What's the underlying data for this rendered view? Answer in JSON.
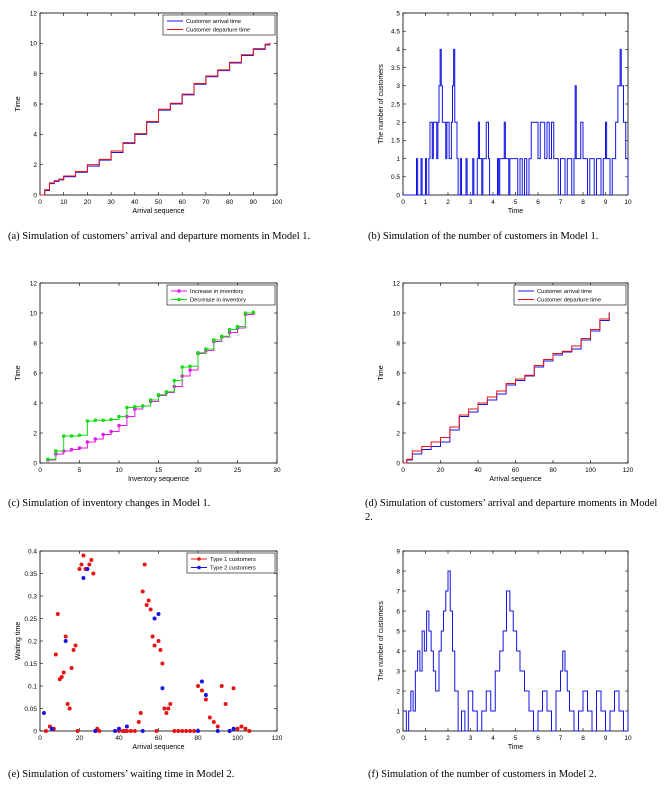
{
  "colors": {
    "blue": "#1414e6",
    "red": "#e61414",
    "magenta": "#e619e6",
    "green": "#14dc14",
    "axis": "#000000"
  },
  "panels": [
    {
      "id": "a",
      "caption": "(a)  Simulation of customers’ arrival and departure moments in Model 1.",
      "chart_data": {
        "type": "line",
        "xlabel": "Arrival sequence",
        "ylabel": "Time",
        "xlim": [
          0,
          100
        ],
        "ylim": [
          0,
          12
        ],
        "xticks": [
          0,
          10,
          20,
          30,
          40,
          50,
          60,
          70,
          80,
          90,
          100
        ],
        "yticks": [
          0,
          2,
          4,
          6,
          8,
          10,
          12
        ],
        "legend": "top-right",
        "grid": false,
        "x": [
          0,
          2,
          4,
          6,
          8,
          10,
          15,
          20,
          25,
          30,
          35,
          40,
          45,
          50,
          55,
          60,
          65,
          70,
          75,
          80,
          85,
          90,
          95,
          97
        ],
        "series": [
          {
            "name": "Customer arrival time",
            "color": "blue",
            "step": true,
            "marker": false,
            "values": [
              0,
              0.3,
              0.75,
              0.9,
              1.0,
              1.2,
              1.5,
              1.9,
              2.3,
              2.8,
              3.4,
              4.0,
              4.8,
              5.6,
              6.0,
              6.6,
              7.3,
              7.8,
              8.2,
              8.7,
              9.2,
              9.6,
              9.9,
              10.0
            ]
          },
          {
            "name": "Customer departure time",
            "color": "red",
            "step": true,
            "marker": false,
            "values": [
              0,
              0.35,
              0.8,
              0.95,
              1.05,
              1.25,
              1.55,
              2.0,
              2.35,
              2.9,
              3.45,
              4.05,
              4.85,
              5.65,
              6.05,
              6.65,
              7.35,
              7.85,
              8.25,
              8.75,
              9.25,
              9.65,
              9.95,
              10.05
            ]
          }
        ]
      }
    },
    {
      "id": "b",
      "caption": "(b)  Simulation of the number of customers in Model 1.",
      "chart_data": {
        "type": "line",
        "xlabel": "Time",
        "ylabel": "The number of customers",
        "xlim": [
          0,
          10
        ],
        "ylim": [
          0,
          5
        ],
        "xticks": [
          0,
          1,
          2,
          3,
          4,
          5,
          6,
          7,
          8,
          9,
          10
        ],
        "yticks": [
          0,
          0.5,
          1,
          1.5,
          2,
          2.5,
          3,
          3.5,
          4,
          4.5,
          5
        ],
        "legend": "none",
        "grid": false,
        "series": [
          {
            "name": "",
            "color": "blue",
            "step": true,
            "marker": false,
            "x": [
              0,
              0.6,
              0.65,
              0.8,
              0.85,
              1.0,
              1.05,
              1.15,
              1.2,
              1.3,
              1.35,
              1.5,
              1.55,
              1.6,
              1.65,
              1.7,
              1.75,
              1.9,
              1.95,
              2.05,
              2.15,
              2.2,
              2.25,
              2.3,
              2.4,
              2.45,
              2.55,
              2.6,
              2.8,
              2.85,
              3.1,
              3.15,
              3.3,
              3.35,
              3.4,
              3.5,
              3.55,
              3.7,
              3.8,
              3.85,
              4.2,
              4.25,
              4.3,
              4.5,
              4.55,
              4.7,
              4.75,
              5.1,
              5.2,
              5.3,
              5.4,
              5.5,
              5.6,
              5.7,
              6.0,
              6.1,
              6.3,
              6.4,
              6.5,
              6.6,
              6.7,
              6.9,
              7.0,
              7.2,
              7.3,
              7.5,
              7.6,
              7.65,
              7.7,
              7.9,
              8.0,
              8.2,
              8.3,
              8.5,
              8.6,
              8.8,
              8.9,
              9.0,
              9.05,
              9.2,
              9.3,
              9.45,
              9.55,
              9.65,
              9.7,
              9.8,
              9.9,
              10.0
            ],
            "values": [
              0,
              1,
              0,
              1,
              0,
              1,
              0,
              1,
              2,
              1,
              2,
              1,
              2,
              3,
              4,
              3,
              2,
              1,
              2,
              1,
              2,
              3,
              4,
              2,
              1,
              0,
              1,
              0,
              1,
              0,
              1,
              0,
              1,
              2,
              1,
              0,
              1,
              2,
              1,
              0,
              1,
              0,
              1,
              2,
              1,
              0,
              1,
              0,
              1,
              0,
              1,
              0,
              1,
              2,
              1,
              2,
              1,
              2,
              1,
              2,
              1,
              0,
              1,
              0,
              1,
              0,
              1,
              3,
              1,
              2,
              1,
              0,
              1,
              0,
              1,
              0,
              1,
              2,
              1,
              0,
              1,
              2,
              3,
              4,
              3,
              2,
              1,
              0
            ]
          }
        ]
      }
    },
    {
      "id": "c",
      "caption": "(c)  Simulation of inventory changes in Model 1.",
      "chart_data": {
        "type": "line",
        "xlabel": "Inventory sequence",
        "ylabel": "Time",
        "xlim": [
          0,
          30
        ],
        "ylim": [
          0,
          12
        ],
        "xticks": [
          0,
          5,
          10,
          15,
          20,
          25,
          30
        ],
        "yticks": [
          0,
          2,
          4,
          6,
          8,
          10,
          12
        ],
        "legend": "top-right",
        "grid": false,
        "series": [
          {
            "name": "Increase in inventory",
            "color": "magenta",
            "step": true,
            "marker": true,
            "x": [
              1,
              2,
              3,
              4,
              5,
              6,
              7,
              8,
              9,
              10,
              11,
              12,
              13,
              14,
              15,
              16,
              17,
              18,
              19,
              20,
              21,
              22,
              23,
              24,
              25,
              26,
              27
            ],
            "values": [
              0.2,
              0.6,
              0.8,
              0.9,
              1.0,
              1.4,
              1.6,
              1.9,
              2.1,
              2.5,
              3.1,
              3.6,
              3.8,
              4.1,
              4.5,
              4.7,
              5.1,
              5.8,
              6.2,
              7.3,
              7.5,
              8.1,
              8.4,
              8.7,
              9.0,
              9.9,
              10.0
            ]
          },
          {
            "name": "Decrease in inventory",
            "color": "green",
            "step": true,
            "marker": true,
            "x": [
              1,
              2,
              3,
              4,
              5,
              6,
              7,
              8,
              9,
              10,
              11,
              12,
              13,
              14,
              15,
              16,
              17,
              18,
              19,
              20,
              21,
              22,
              23,
              24,
              25,
              26,
              27
            ],
            "values": [
              0.25,
              0.8,
              1.8,
              1.8,
              1.85,
              2.8,
              2.85,
              2.85,
              2.9,
              3.1,
              3.7,
              3.75,
              3.8,
              4.2,
              4.55,
              4.75,
              5.5,
              6.4,
              6.45,
              7.35,
              7.6,
              8.2,
              8.45,
              8.9,
              9.1,
              10.0,
              10.05
            ]
          }
        ]
      }
    },
    {
      "id": "d",
      "caption": "(d)  Simulation of customers’ arrival and departure moments in Model 2.",
      "chart_data": {
        "type": "line",
        "xlabel": "Arrival sequence",
        "ylabel": "Time",
        "xlim": [
          0,
          120
        ],
        "ylim": [
          0,
          12
        ],
        "xticks": [
          0,
          20,
          40,
          60,
          80,
          100,
          120
        ],
        "yticks": [
          0,
          2,
          4,
          6,
          8,
          10,
          12
        ],
        "legend": "top-right",
        "grid": false,
        "x": [
          0,
          2,
          5,
          10,
          15,
          20,
          25,
          30,
          35,
          40,
          45,
          50,
          55,
          60,
          65,
          70,
          75,
          80,
          85,
          90,
          95,
          100,
          105,
          110
        ],
        "series": [
          {
            "name": "Customer arrival time",
            "color": "blue",
            "step": true,
            "marker": false,
            "values": [
              0,
              0.2,
              0.6,
              0.9,
              1.1,
              1.4,
              2.2,
              3.1,
              3.4,
              3.9,
              4.2,
              4.6,
              5.2,
              5.5,
              5.8,
              6.4,
              6.8,
              7.2,
              7.4,
              7.6,
              8.2,
              8.8,
              9.5,
              10.0
            ]
          },
          {
            "name": "Customer departure time",
            "color": "red",
            "step": true,
            "marker": false,
            "values": [
              0,
              0.25,
              0.8,
              1.1,
              1.4,
              1.7,
              2.4,
              3.2,
              3.6,
              4.0,
              4.4,
              4.8,
              5.3,
              5.6,
              5.85,
              6.5,
              6.9,
              7.3,
              7.45,
              7.8,
              8.3,
              8.9,
              9.6,
              10.05
            ]
          }
        ]
      }
    },
    {
      "id": "e",
      "caption": "(e)  Simulation of customers’ waiting time in Model 2.",
      "chart_data": {
        "type": "scatter",
        "xlabel": "Arrival sequence",
        "ylabel": "Waiting time",
        "xlim": [
          0,
          120
        ],
        "ylim": [
          0,
          0.4
        ],
        "xticks": [
          0,
          20,
          40,
          60,
          80,
          100,
          120
        ],
        "yticks": [
          0,
          0.05,
          0.1,
          0.15,
          0.2,
          0.25,
          0.3,
          0.35,
          0.4
        ],
        "legend": "top-right",
        "grid": false,
        "series": [
          {
            "name": "Type 1 customers",
            "color": "red",
            "marker": true,
            "x": [
              3,
              5,
              7,
              8,
              9,
              10,
              11,
              12,
              13,
              14,
              15,
              16,
              17,
              18,
              19,
              20,
              21,
              22,
              23,
              25,
              26,
              27,
              28,
              29,
              30,
              40,
              42,
              43,
              44,
              46,
              48,
              50,
              51,
              52,
              53,
              54,
              55,
              56,
              57,
              58,
              59,
              60,
              61,
              62,
              63,
              64,
              65,
              66,
              68,
              70,
              72,
              74,
              76,
              78,
              80,
              82,
              84,
              86,
              88,
              90,
              92,
              94,
              96,
              98,
              100,
              102,
              104,
              106
            ],
            "y": [
              0.0,
              0.01,
              0.005,
              0.17,
              0.26,
              0.115,
              0.12,
              0.13,
              0.21,
              0.06,
              0.05,
              0.14,
              0.18,
              0.19,
              0.0,
              0.36,
              0.37,
              0.39,
              0.36,
              0.37,
              0.38,
              0.35,
              0.0,
              0.005,
              0.0,
              0.0,
              0.0,
              0.0,
              0.0,
              0.0,
              0.0,
              0.02,
              0.04,
              0.31,
              0.37,
              0.28,
              0.29,
              0.27,
              0.21,
              0.19,
              0.0,
              0.2,
              0.18,
              0.15,
              0.05,
              0.04,
              0.05,
              0.06,
              0.0,
              0.0,
              0.0,
              0.0,
              0.0,
              0.0,
              0.1,
              0.09,
              0.07,
              0.03,
              0.02,
              0.01,
              0.1,
              0.06,
              0.0,
              0.095,
              0.005,
              0.01,
              0.005,
              0.0
            ]
          },
          {
            "name": "Type 2 customers",
            "color": "blue",
            "marker": true,
            "x": [
              2,
              6,
              13,
              22,
              24,
              28,
              38,
              40,
              44,
              52,
              58,
              60,
              62,
              80,
              82,
              84,
              90,
              96,
              98
            ],
            "y": [
              0.04,
              0.005,
              0.2,
              0.34,
              0.36,
              0.0,
              0.0,
              0.005,
              0.01,
              0.0,
              0.25,
              0.26,
              0.095,
              0.0,
              0.11,
              0.08,
              0.0,
              0.0,
              0.005
            ]
          }
        ]
      }
    },
    {
      "id": "f",
      "caption": "(f)  Simulation of the number of customers in Model 2.",
      "chart_data": {
        "type": "line",
        "xlabel": "Time",
        "ylabel": "The number of customers",
        "xlim": [
          0,
          10
        ],
        "ylim": [
          0,
          9
        ],
        "xticks": [
          0,
          1,
          2,
          3,
          4,
          5,
          6,
          7,
          8,
          9,
          10
        ],
        "yticks": [
          0,
          1,
          2,
          3,
          4,
          5,
          6,
          7,
          8,
          9
        ],
        "legend": "none",
        "grid": false,
        "series": [
          {
            "name": "",
            "color": "blue",
            "step": true,
            "marker": false,
            "x": [
              0,
              0.15,
              0.25,
              0.35,
              0.45,
              0.55,
              0.65,
              0.75,
              0.85,
              0.95,
              1.05,
              1.15,
              1.25,
              1.35,
              1.45,
              1.6,
              1.7,
              1.8,
              1.9,
              2.0,
              2.1,
              2.2,
              2.3,
              2.45,
              2.6,
              2.75,
              2.9,
              3.1,
              3.3,
              3.5,
              3.7,
              3.9,
              4.1,
              4.3,
              4.45,
              4.6,
              4.75,
              4.9,
              5.05,
              5.2,
              5.4,
              5.6,
              5.8,
              6.0,
              6.2,
              6.4,
              6.6,
              6.8,
              7.0,
              7.1,
              7.2,
              7.3,
              7.4,
              7.6,
              7.8,
              8.0,
              8.2,
              8.4,
              8.6,
              8.8,
              9.0,
              9.2,
              9.4,
              9.6,
              9.8,
              10.0
            ],
            "values": [
              1,
              0,
              1,
              2,
              1,
              3,
              4,
              3,
              5,
              4,
              6,
              5,
              4,
              3,
              2,
              4,
              5,
              6,
              7,
              8,
              6,
              4,
              2,
              0,
              1,
              0,
              2,
              1,
              0,
              1,
              2,
              1,
              3,
              4,
              5,
              7,
              6,
              5,
              4,
              3,
              2,
              1,
              0,
              1,
              2,
              1,
              0,
              2,
              3,
              4,
              3,
              2,
              1,
              0,
              1,
              2,
              1,
              0,
              2,
              1,
              0,
              1,
              2,
              1,
              0,
              1
            ]
          }
        ]
      }
    }
  ]
}
